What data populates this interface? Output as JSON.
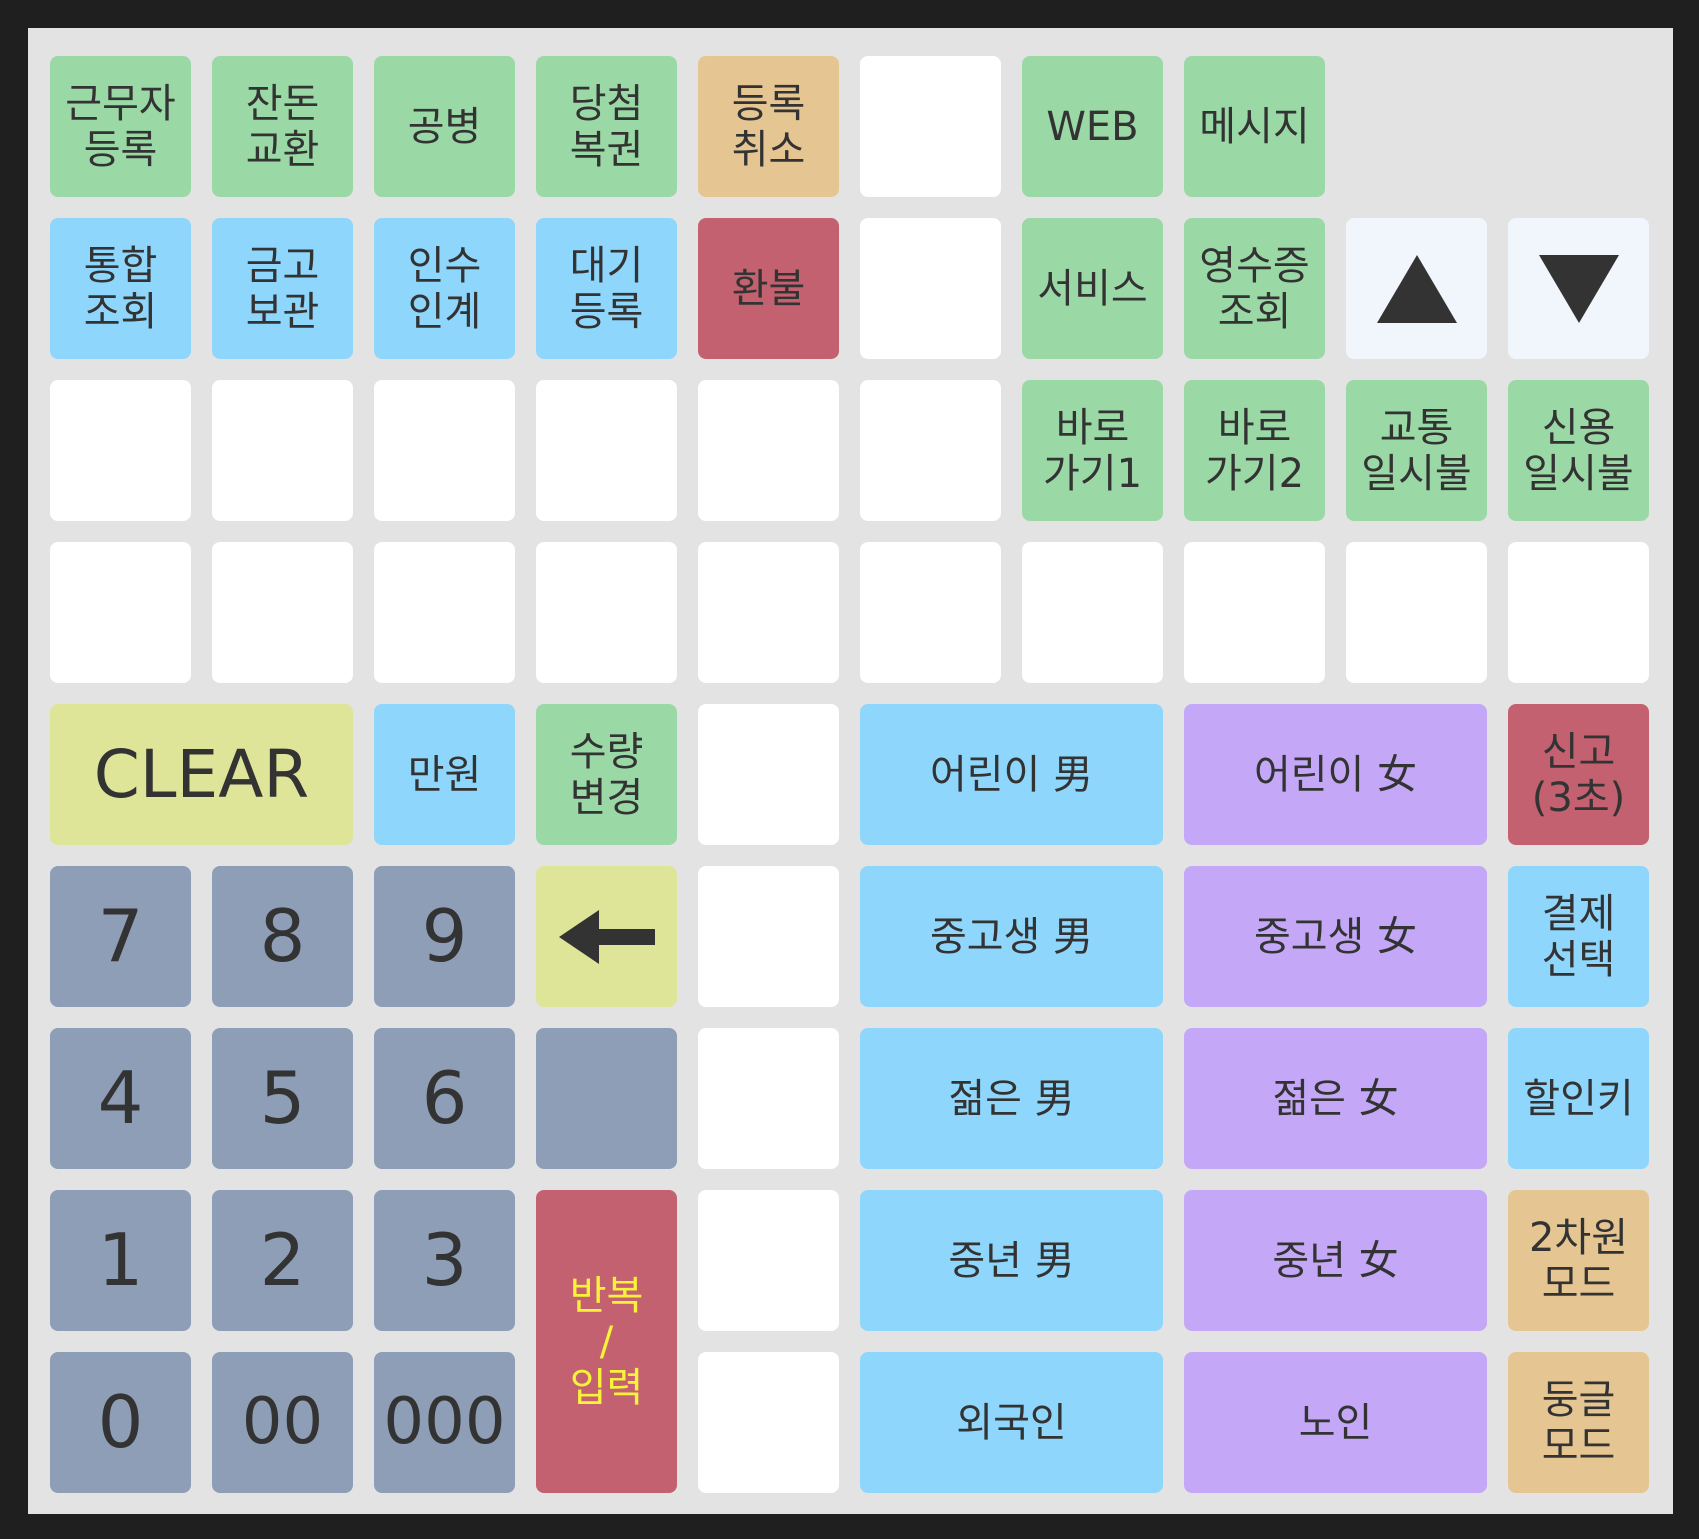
{
  "row1": {
    "worker_register": "근무자\n등록",
    "change_exchange": "잔돈\n교환",
    "empty_bottle": "공병",
    "winning_lottery": "당첨\n복권",
    "register_cancel": "등록\n취소",
    "web": "WEB",
    "message": "메시지"
  },
  "row2": {
    "integrated_lookup": "통합\n조회",
    "safe_storage": "금고\n보관",
    "handover": "인수\n인계",
    "standby_register": "대기\n등록",
    "refund": "환불",
    "service": "서비스",
    "receipt_lookup": "영수증\n조회",
    "up_arrow_icon": "triangle-up",
    "down_arrow_icon": "triangle-down"
  },
  "row3": {
    "shortcut1": "바로\n가기1",
    "shortcut2": "바로\n가기2",
    "transit_deferred": "교통\n일시불",
    "credit_deferred": "신용\n일시불"
  },
  "controls": {
    "clear": "CLEAR",
    "ten_thousand": "만원",
    "quantity_change": "수량\n변경",
    "backspace_icon": "arrow-left",
    "repeat_enter": "반복\n/\n입력",
    "report": "신고\n(3초)",
    "payment_select": "결제\n선택",
    "discount_key": "할인키",
    "barcode_mode": "2차원\n모드",
    "rounding_mode": "둥글\n모드"
  },
  "numpad": [
    "7",
    "8",
    "9",
    "4",
    "5",
    "6",
    "1",
    "2",
    "3",
    "0",
    "00",
    "000"
  ],
  "customer_types": {
    "child_male": "어린이 男",
    "child_female": "어린이 女",
    "teen_male": "중고생 男",
    "teen_female": "중고생 女",
    "young_male": "젊은 男",
    "young_female": "젊은 女",
    "middle_male": "중년 男",
    "middle_female": "중년 女",
    "foreigner": "외국인",
    "senior": "노인"
  },
  "colors": {
    "green": "#9ad9a6",
    "tan": "#e5c693",
    "blue": "#8ed6fb",
    "red": "#c36170",
    "purple": "#c4a8f7",
    "lime": "#dfe598",
    "gray": "#8f9eb7",
    "white": "#ffffff",
    "pale": "#f0f6fc",
    "text": "#333333",
    "highlight_text": "#f8f23a"
  }
}
